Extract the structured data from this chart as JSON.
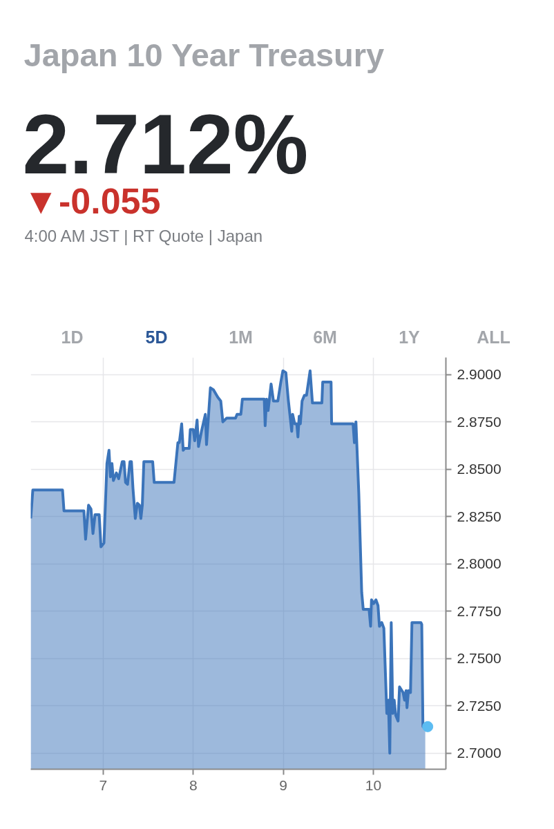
{
  "chart_data": {
    "type": "area",
    "title": "Japan 10 Year Treasury",
    "subtitle": "2.712%",
    "annotations": [
      "▼-0.055",
      "4:00 AM JST | RT Quote | Japan",
      "1D",
      "5D",
      "1M",
      "6M",
      "1Y",
      "ALL"
    ],
    "xlim": [
      6.195,
      10.805
    ],
    "ylim": [
      2.6915,
      2.909
    ],
    "xticks": [
      7,
      8,
      9,
      10
    ],
    "yticks": [
      {
        "value": 2.7,
        "label": "2.7000"
      },
      {
        "value": 2.725,
        "label": "2.7250"
      },
      {
        "value": 2.75,
        "label": "2.7500"
      },
      {
        "value": 2.775,
        "label": "2.7750"
      },
      {
        "value": 2.8,
        "label": "2.8000"
      },
      {
        "value": 2.825,
        "label": "2.8250"
      },
      {
        "value": 2.85,
        "label": "2.8500"
      },
      {
        "value": 2.875,
        "label": "2.8750"
      },
      {
        "value": 2.9,
        "label": "2.9000"
      }
    ],
    "grid": true,
    "series": [
      {
        "color": "#3b74ba",
        "x": [
          6.195,
          6.218,
          6.548,
          6.564,
          6.785,
          6.804,
          6.837,
          6.864,
          6.886,
          6.909,
          6.955,
          6.975,
          7.008,
          7.041,
          7.064,
          7.08,
          7.097,
          7.113,
          7.146,
          7.172,
          7.211,
          7.231,
          7.248,
          7.27,
          7.297,
          7.313,
          7.33,
          7.356,
          7.379,
          7.402,
          7.418,
          7.434,
          7.451,
          7.549,
          7.566,
          7.786,
          7.829,
          7.845,
          7.871,
          7.888,
          7.904,
          7.954,
          7.967,
          7.999,
          8.016,
          8.042,
          8.058,
          8.091,
          8.134,
          8.147,
          8.19,
          8.223,
          8.272,
          8.305,
          8.328,
          8.371,
          8.469,
          8.486,
          8.528,
          8.545,
          8.788,
          8.798,
          8.814,
          8.831,
          8.864,
          8.89,
          8.939,
          8.972,
          8.995,
          9.028,
          9.054,
          9.093,
          9.103,
          9.126,
          9.149,
          9.162,
          9.176,
          9.189,
          9.208,
          9.234,
          9.257,
          9.297,
          9.323,
          9.428,
          9.437,
          9.53,
          9.536,
          9.774,
          9.789,
          9.806,
          9.838,
          9.87,
          9.887,
          9.952,
          9.969,
          9.979,
          10.002,
          10.028,
          10.051,
          10.067,
          10.093,
          10.116,
          10.149,
          10.166,
          10.182,
          10.198,
          10.215,
          10.231,
          10.248,
          10.274,
          10.29,
          10.33,
          10.346,
          10.363,
          10.373,
          10.389,
          10.412,
          10.428,
          10.527,
          10.537,
          10.55,
          10.576
        ],
        "values": [
          2.824,
          2.839,
          2.839,
          2.828,
          2.828,
          2.813,
          2.831,
          2.829,
          2.816,
          2.826,
          2.826,
          2.809,
          2.811,
          2.853,
          2.86,
          2.846,
          2.853,
          2.844,
          2.848,
          2.845,
          2.854,
          2.854,
          2.843,
          2.842,
          2.854,
          2.854,
          2.84,
          2.824,
          2.832,
          2.831,
          2.824,
          2.831,
          2.854,
          2.854,
          2.843,
          2.843,
          2.864,
          2.864,
          2.874,
          2.86,
          2.861,
          2.861,
          2.871,
          2.871,
          2.865,
          2.876,
          2.862,
          2.87,
          2.879,
          2.863,
          2.893,
          2.892,
          2.888,
          2.886,
          2.875,
          2.877,
          2.877,
          2.879,
          2.879,
          2.887,
          2.887,
          2.873,
          2.887,
          2.881,
          2.895,
          2.886,
          2.886,
          2.896,
          2.902,
          2.901,
          2.887,
          2.87,
          2.879,
          2.874,
          2.874,
          2.867,
          2.878,
          2.874,
          2.886,
          2.889,
          2.889,
          2.902,
          2.885,
          2.885,
          2.896,
          2.896,
          2.874,
          2.874,
          2.864,
          2.875,
          2.837,
          2.785,
          2.776,
          2.776,
          2.767,
          2.781,
          2.779,
          2.781,
          2.778,
          2.767,
          2.769,
          2.766,
          2.721,
          2.728,
          2.7,
          2.769,
          2.721,
          2.728,
          2.72,
          2.717,
          2.735,
          2.732,
          2.728,
          2.733,
          2.724,
          2.733,
          2.732,
          2.769,
          2.769,
          2.768,
          2.714,
          2.714
        ]
      },
      {
        "type": "scatter",
        "color": "#5cbcf2",
        "marker": "circle",
        "x": [
          10.603
        ],
        "values": [
          2.714
        ]
      }
    ]
  }
}
